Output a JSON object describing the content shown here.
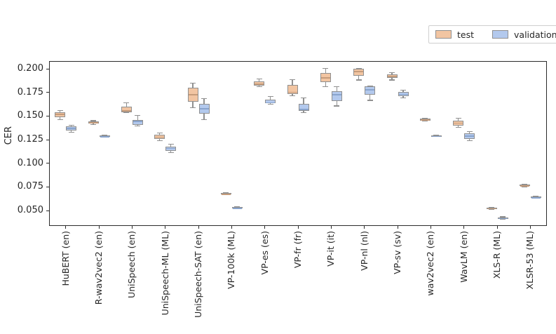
{
  "chart_data": {
    "type": "boxplot",
    "title": "",
    "ylabel": "CER",
    "xlabel": "",
    "ylim": [
      0.0337,
      0.2083
    ],
    "yticks": [
      0.05,
      0.075,
      0.1,
      0.125,
      0.15,
      0.175,
      0.2
    ],
    "grid": false,
    "legend_position": "top-right outside axes",
    "legend": [
      {
        "label": "test",
        "color": "#f2c5a2"
      },
      {
        "label": "validation",
        "color": "#b3c9ed"
      }
    ],
    "categories": [
      "HuBERT (en)",
      "R-wav2vec2 (en)",
      "UniSpeech (en)",
      "UniSpeech-ML (ML)",
      "UniSpeech-SAT (en)",
      "VP-100k (ML)",
      "VP-es (es)",
      "VP-fr (fr)",
      "VP-it (it)",
      "VP-nl (nl)",
      "VP-sv (sv)",
      "wav2vec2 (en)",
      "WavLM (en)",
      "XLS-R (ML)",
      "XLSR-53 (ML)"
    ],
    "series": [
      {
        "name": "test",
        "color": "#f2c5a2",
        "median_color": "#c69c7b",
        "boxes": [
          {
            "whislo": 0.1465,
            "q1": 0.149,
            "med": 0.152,
            "q3": 0.154,
            "whishi": 0.156
          },
          {
            "whislo": 0.1412,
            "q1": 0.1422,
            "med": 0.1431,
            "q3": 0.1443,
            "whishi": 0.1452
          },
          {
            "whislo": 0.1535,
            "q1": 0.1542,
            "med": 0.1558,
            "q3": 0.1597,
            "whishi": 0.1638
          },
          {
            "whislo": 0.124,
            "q1": 0.1258,
            "med": 0.1281,
            "q3": 0.1301,
            "whishi": 0.132
          },
          {
            "whislo": 0.159,
            "q1": 0.1655,
            "med": 0.173,
            "q3": 0.1802,
            "whishi": 0.1849
          },
          {
            "whislo": 0.0665,
            "q1": 0.0671,
            "med": 0.0678,
            "q3": 0.0685,
            "whishi": 0.0691
          },
          {
            "whislo": 0.1814,
            "q1": 0.1823,
            "med": 0.1843,
            "q3": 0.1871,
            "whishi": 0.1894
          },
          {
            "whislo": 0.1716,
            "q1": 0.1731,
            "med": 0.1755,
            "q3": 0.1829,
            "whishi": 0.1888
          },
          {
            "whislo": 0.181,
            "q1": 0.1858,
            "med": 0.1908,
            "q3": 0.1955,
            "whishi": 0.2005
          },
          {
            "whislo": 0.1883,
            "q1": 0.1928,
            "med": 0.1976,
            "q3": 0.2001,
            "whishi": 0.2003
          },
          {
            "whislo": 0.1883,
            "q1": 0.1901,
            "med": 0.1925,
            "q3": 0.1945,
            "whishi": 0.1964
          },
          {
            "whislo": 0.1446,
            "q1": 0.1455,
            "med": 0.1463,
            "q3": 0.1471,
            "whishi": 0.1479
          },
          {
            "whislo": 0.138,
            "q1": 0.1402,
            "med": 0.1428,
            "q3": 0.1449,
            "whishi": 0.1476
          },
          {
            "whislo": 0.051,
            "q1": 0.0517,
            "med": 0.0524,
            "q3": 0.0531,
            "whishi": 0.0537
          },
          {
            "whislo": 0.0752,
            "q1": 0.0759,
            "med": 0.0765,
            "q3": 0.0772,
            "whishi": 0.0778
          }
        ]
      },
      {
        "name": "validation",
        "color": "#b3c9ed",
        "median_color": "#89a4cd",
        "boxes": [
          {
            "whislo": 0.1328,
            "q1": 0.135,
            "med": 0.1375,
            "q3": 0.1391,
            "whishi": 0.1406
          },
          {
            "whislo": 0.1275,
            "q1": 0.1281,
            "med": 0.1287,
            "q3": 0.1293,
            "whishi": 0.1299
          },
          {
            "whislo": 0.1399,
            "q1": 0.1406,
            "med": 0.1448,
            "q3": 0.1458,
            "whishi": 0.1506
          },
          {
            "whislo": 0.1113,
            "q1": 0.1134,
            "med": 0.1163,
            "q3": 0.1178,
            "whishi": 0.1201
          },
          {
            "whislo": 0.1462,
            "q1": 0.1527,
            "med": 0.1581,
            "q3": 0.1633,
            "whishi": 0.1687
          },
          {
            "whislo": 0.0518,
            "q1": 0.0524,
            "med": 0.0531,
            "q3": 0.0538,
            "whishi": 0.0544
          },
          {
            "whislo": 0.1628,
            "q1": 0.1634,
            "med": 0.1645,
            "q3": 0.1676,
            "whishi": 0.1711
          },
          {
            "whislo": 0.1539,
            "q1": 0.1552,
            "med": 0.1574,
            "q3": 0.1633,
            "whishi": 0.1692
          },
          {
            "whislo": 0.1608,
            "q1": 0.1662,
            "med": 0.173,
            "q3": 0.1765,
            "whishi": 0.1814
          },
          {
            "whislo": 0.1667,
            "q1": 0.1723,
            "med": 0.178,
            "q3": 0.1814,
            "whishi": 0.1821
          },
          {
            "whislo": 0.1694,
            "q1": 0.1711,
            "med": 0.1733,
            "q3": 0.1753,
            "whishi": 0.1777
          },
          {
            "whislo": 0.1282,
            "q1": 0.1287,
            "med": 0.1292,
            "q3": 0.1297,
            "whishi": 0.1302
          },
          {
            "whislo": 0.1237,
            "q1": 0.1261,
            "med": 0.1293,
            "q3": 0.1319,
            "whishi": 0.1338
          },
          {
            "whislo": 0.0407,
            "q1": 0.0414,
            "med": 0.0421,
            "q3": 0.0428,
            "whishi": 0.0434
          },
          {
            "whislo": 0.0628,
            "q1": 0.0635,
            "med": 0.0642,
            "q3": 0.0649,
            "whishi": 0.0655
          }
        ]
      }
    ]
  }
}
